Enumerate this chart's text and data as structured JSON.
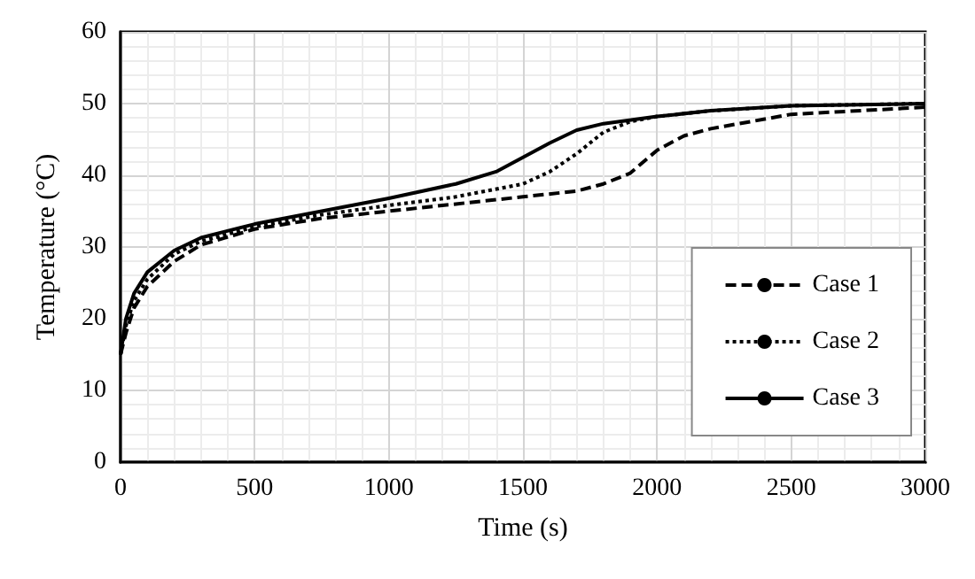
{
  "chart_data": {
    "type": "line",
    "xlabel": "Time (s)",
    "ylabel": "Temperature (°C)",
    "xlim": [
      0,
      3000
    ],
    "xticks": [
      0,
      500,
      1000,
      1500,
      2000,
      2500,
      3000
    ],
    "ylim": [
      0,
      60
    ],
    "yticks": [
      0,
      10,
      20,
      30,
      40,
      50,
      60
    ],
    "grid": true,
    "legend": "right",
    "marker": "none",
    "series": [
      {
        "name": "Case 1",
        "color": "#000000",
        "line_style": "dashed",
        "x": [
          0,
          20,
          50,
          100,
          200,
          300,
          500,
          750,
          1000,
          1250,
          1500,
          1700,
          1800,
          1900,
          2000,
          2100,
          2200,
          2500,
          3000
        ],
        "values": [
          15,
          18,
          21.5,
          24.5,
          28,
          30.3,
          32.5,
          34,
          35,
          36,
          37,
          37.8,
          38.8,
          40.3,
          43.5,
          45.5,
          46.5,
          48.5,
          49.5
        ]
      },
      {
        "name": "Case 2",
        "color": "#000000",
        "line_style": "dotted",
        "x": [
          0,
          20,
          50,
          100,
          200,
          300,
          500,
          750,
          1000,
          1250,
          1500,
          1600,
          1700,
          1800,
          1900,
          2000,
          2200,
          2500,
          3000
        ],
        "values": [
          15,
          19,
          22.5,
          25.5,
          29,
          30.8,
          32.8,
          34.5,
          35.8,
          37,
          38.8,
          40.5,
          43,
          46,
          47.5,
          48.2,
          49,
          49.7,
          50
        ]
      },
      {
        "name": "Case 3",
        "color": "#000000",
        "line_style": "solid",
        "x": [
          0,
          20,
          50,
          100,
          200,
          300,
          500,
          750,
          1000,
          1250,
          1400,
          1500,
          1600,
          1700,
          1800,
          2000,
          2200,
          2500,
          3000
        ],
        "values": [
          15,
          20,
          23.5,
          26.5,
          29.5,
          31.3,
          33.2,
          35,
          36.8,
          38.8,
          40.5,
          42.5,
          44.5,
          46.3,
          47.2,
          48.2,
          49,
          49.7,
          50
        ]
      }
    ]
  }
}
